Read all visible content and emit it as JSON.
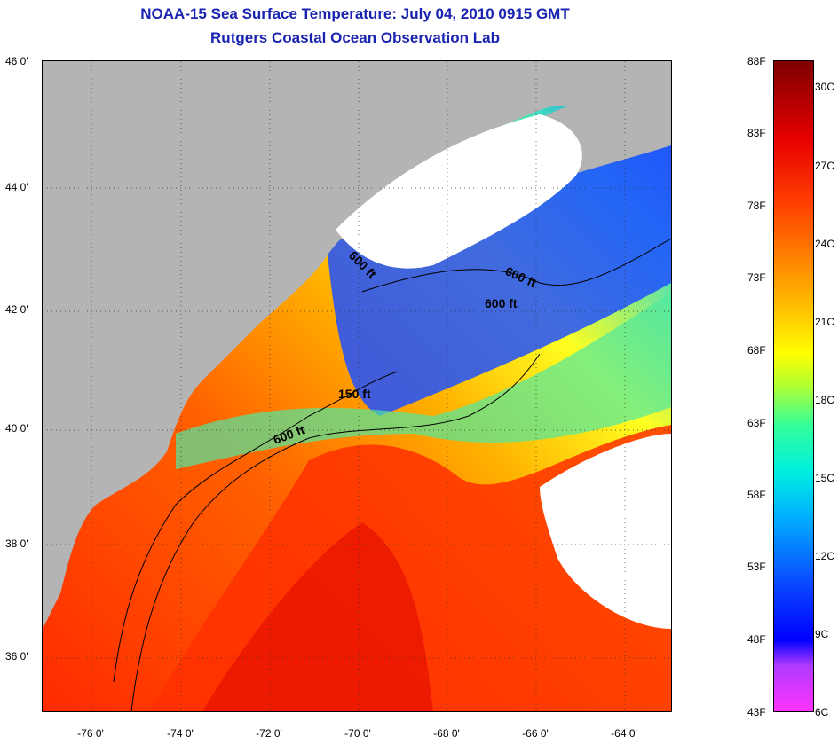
{
  "title": {
    "line1": "NOAA-15 Sea Surface Temperature:  July 04, 2010 0915 GMT",
    "line2": "Rutgers Coastal Ocean Observation Lab"
  },
  "axes": {
    "lat_labels": [
      "46 0'",
      "44 0'",
      "42 0'",
      "40 0'",
      "38 0'",
      "36 0'"
    ],
    "lon_labels": [
      "-76 0'",
      "-74 0'",
      "-72 0'",
      "-70 0'",
      "-68 0'",
      "-66 0'",
      "-64 0'"
    ],
    "lat_range": [
      35,
      46
    ],
    "lon_range": [
      -77,
      -63
    ],
    "grid": "dotted"
  },
  "contours": [
    {
      "label": "600 ft"
    },
    {
      "label": "600 ft"
    },
    {
      "label": "600 ft"
    },
    {
      "label": "150 ft"
    },
    {
      "label": "600 ft"
    }
  ],
  "colorbar": {
    "fahrenheit": [
      "88F",
      "83F",
      "78F",
      "73F",
      "68F",
      "63F",
      "58F",
      "53F",
      "48F",
      "43F"
    ],
    "celsius": [
      "30C",
      "27C",
      "24C",
      "21C",
      "18C",
      "15C",
      "12C",
      "9C",
      "6C"
    ],
    "range_f": [
      43,
      88
    ],
    "colors": {
      "min": "#ff33ff",
      "cold": "#0000ff",
      "mid": "#ffff00",
      "warm": "#ff4000",
      "max": "#800000",
      "land": "#b4b4b4",
      "cloud": "#ffffff"
    }
  }
}
